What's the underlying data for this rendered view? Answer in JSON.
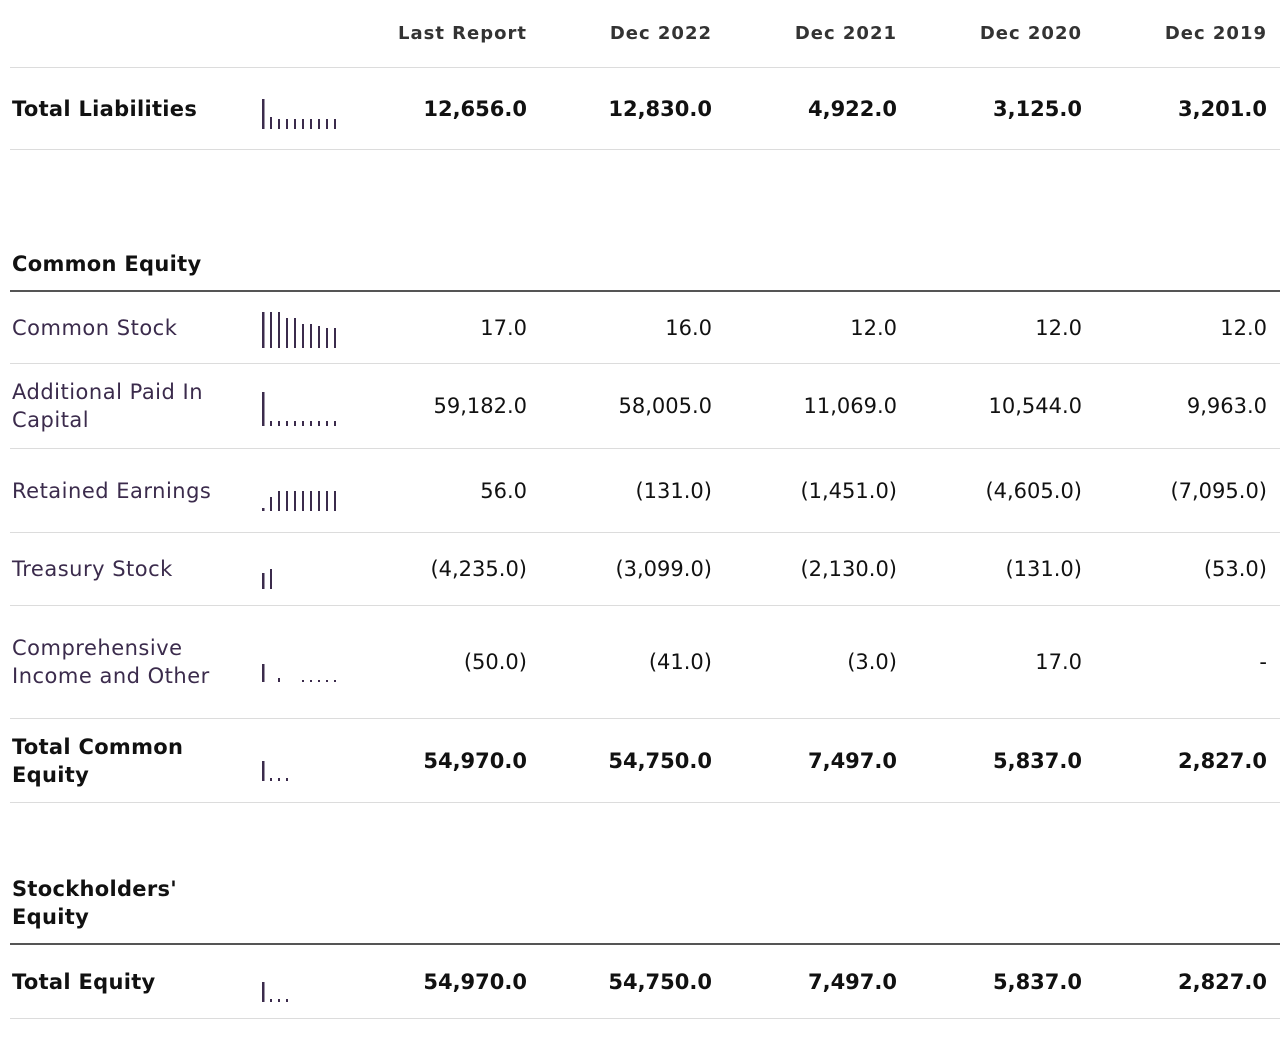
{
  "table": {
    "columns": [
      "Last Report",
      "Dec 2022",
      "Dec 2021",
      "Dec 2020",
      "Dec 2019"
    ],
    "sections": [
      "Common Equity",
      "Stockholders' Equity"
    ],
    "rows": [
      {
        "label": "Total Liabilities",
        "values": [
          "12,656.0",
          "12,830.0",
          "4,922.0",
          "3,125.0",
          "3,201.0"
        ]
      },
      {
        "label": "Common Stock",
        "values": [
          "17.0",
          "16.0",
          "12.0",
          "12.0",
          "12.0"
        ]
      },
      {
        "label": "Additional Paid In Capital",
        "values": [
          "59,182.0",
          "58,005.0",
          "11,069.0",
          "10,544.0",
          "9,963.0"
        ]
      },
      {
        "label": "Retained Earnings",
        "values": [
          "56.0",
          "(131.0)",
          "(1,451.0)",
          "(4,605.0)",
          "(7,095.0)"
        ]
      },
      {
        "label": "Treasury Stock",
        "values": [
          "(4,235.0)",
          "(3,099.0)",
          "(2,130.0)",
          "(131.0)",
          "(53.0)"
        ]
      },
      {
        "label": "Comprehensive Income and Other",
        "values": [
          "(50.0)",
          "(41.0)",
          "(3.0)",
          "17.0",
          "-"
        ]
      },
      {
        "label": "Total Common Equity",
        "values": [
          "54,970.0",
          "54,750.0",
          "7,497.0",
          "5,837.0",
          "2,827.0"
        ]
      },
      {
        "label": "Total Equity",
        "values": [
          "54,970.0",
          "54,750.0",
          "7,497.0",
          "5,837.0",
          "2,827.0"
        ]
      }
    ]
  }
}
